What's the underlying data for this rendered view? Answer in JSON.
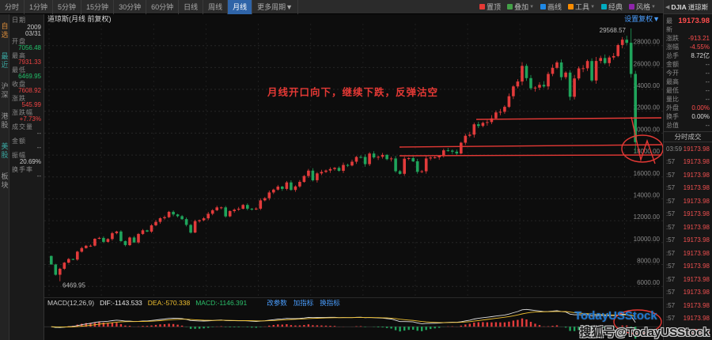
{
  "toolbar": {
    "tabs": [
      "分时",
      "1分钟",
      "5分钟",
      "15分钟",
      "30分钟",
      "60分钟",
      "日线",
      "周线",
      "月线",
      "更多周期"
    ],
    "selected": "月线",
    "more_suffix": "▼",
    "right_buttons": [
      {
        "label": "置顶",
        "color": "#e53935",
        "arrow": false
      },
      {
        "label": "叠加",
        "color": "#43a047",
        "arrow": true
      },
      {
        "label": "画线",
        "color": "#1e88e5",
        "arrow": false
      },
      {
        "label": "工具",
        "color": "#fb8c00",
        "arrow": true
      },
      {
        "label": "经典",
        "color": "#00acc1",
        "arrow": false
      },
      {
        "label": "风格",
        "color": "#8e24aa",
        "arrow": true
      }
    ]
  },
  "left_strip": {
    "items": [
      {
        "label": "自选",
        "color": "#d98b3a"
      },
      {
        "label": "最近",
        "color": "#3aa6a0"
      },
      {
        "label": "沪深",
        "color": "#9a9a9a"
      },
      {
        "label": "港股",
        "color": "#9a9a9a"
      },
      {
        "label": "美股",
        "color": "#3aa6a0"
      },
      {
        "label": "板块",
        "color": "#9a9a9a"
      }
    ]
  },
  "info_panel": {
    "rows": [
      {
        "label": "日期",
        "values": [
          "2009",
          "03/31"
        ],
        "color": "#cccccc"
      },
      {
        "label": "开盘",
        "values": [
          "7056.48"
        ],
        "color": "#21c06a"
      },
      {
        "label": "最高",
        "values": [
          "7931.33"
        ],
        "color": "#ef4444"
      },
      {
        "label": "最低",
        "values": [
          "6469.95"
        ],
        "color": "#21c06a"
      },
      {
        "label": "收盘",
        "values": [
          "7608.92"
        ],
        "color": "#ef4444"
      },
      {
        "label": "涨跌",
        "values": [
          "545.99"
        ],
        "color": "#ef4444"
      },
      {
        "label": "涨跌幅",
        "values": [
          "+7.73%"
        ],
        "color": "#ef4444"
      },
      {
        "label": "成交量",
        "values": [
          "--"
        ],
        "color": "#999999"
      },
      {
        "label": "金额",
        "values": [
          "--"
        ],
        "color": "#999999"
      },
      {
        "label": "振幅",
        "values": [
          "20.69%"
        ],
        "color": "#cccccc"
      },
      {
        "label": "换手率",
        "values": [
          "--"
        ],
        "color": "#999999"
      }
    ]
  },
  "chart_header": {
    "title": "道琼斯(月线 前复权)",
    "settings": "设置复权▼"
  },
  "chart_data": {
    "type": "candlestick",
    "symbol": "DJIA",
    "name": "道琼斯",
    "period": "月线",
    "adjust": "前复权",
    "interval": "month",
    "x_start": "2009-01",
    "x_end": "2020-03",
    "first_open": 8776.39,
    "monthly_closes": [
      8001,
      7063,
      7609,
      8168,
      8500,
      8447,
      9172,
      9496,
      9712,
      9713,
      10345,
      10428,
      10067,
      10325,
      10857,
      11009,
      10137,
      9774,
      10466,
      10015,
      10788,
      11118,
      11006,
      11578,
      11892,
      12226,
      12320,
      12811,
      12570,
      12414,
      12143,
      11614,
      10913,
      11955,
      12046,
      12218,
      12633,
      12952,
      13212,
      13214,
      12393,
      12880,
      13009,
      13091,
      13437,
      13096,
      13026,
      13104,
      13861,
      14054,
      14579,
      14840,
      15116,
      14910,
      15500,
      14810,
      15130,
      15546,
      16086,
      16577,
      15699,
      16322,
      16458,
      16581,
      16717,
      16827,
      16563,
      17098,
      17043,
      17391,
      17828,
      17823,
      17165,
      18133,
      17776,
      17841,
      18011,
      17620,
      17690,
      16528,
      16285,
      17664,
      17720,
      17425,
      16466,
      16517,
      17685,
      17774,
      17787,
      17930,
      18432,
      18401,
      18308,
      18142,
      19124,
      19763,
      19864,
      20812,
      20663,
      20941,
      21009,
      21350,
      21891,
      21948,
      22405,
      23377,
      24272,
      24719,
      26149,
      25029,
      24103,
      24163,
      24416,
      24271,
      25415,
      25965,
      26458,
      25116,
      25538,
      23327,
      25000,
      25916,
      25929,
      26593,
      24815,
      26600,
      26864,
      26403,
      26917,
      27046,
      28051,
      28538,
      28256,
      25409,
      19173.98
    ],
    "marked_high": 29568.57,
    "marked_low": 6469.95,
    "last_close": 19173.98,
    "last_low": 18213.65,
    "ylim": [
      5000,
      30000
    ],
    "y_ticks": [
      28000,
      26000,
      24000,
      22000,
      20000,
      18000,
      16000,
      14000,
      12000,
      10000,
      8000,
      6000
    ],
    "grid": true,
    "colors": {
      "up": "#e23b3b",
      "down": "#1fa45b"
    },
    "indicator": {
      "type": "MACD",
      "fast": 12,
      "slow": 26,
      "signal": 9,
      "dif": -1143.533,
      "dea": -570.338,
      "macd": -1146.391
    }
  },
  "macd_header": {
    "formula": "MACD(12,26,9)",
    "dif_label": "DIF:-1143.533",
    "dea_label": "DEA:-570.338",
    "macd_label": "MACD:-1146.391",
    "links": [
      "改参数",
      "加指标",
      "换指标"
    ]
  },
  "annotations": {
    "note": "月线开口向下，继续下跌，反弹沽空",
    "peak_label": "29568.57",
    "low_label": "6469.95",
    "watermark1": "TodayUSStock",
    "watermark2": "搜狐号@TodayUSStock",
    "draw_color": "#e53935"
  },
  "quote": {
    "back_icon": "◀",
    "code": "DJIA",
    "name": "道琼斯",
    "rows": [
      {
        "label": "最新",
        "value": "19173.98",
        "color": "#ff4d4d",
        "big": true
      },
      {
        "label": "涨跌",
        "value": "-913.21",
        "color": "#ff4d4d",
        "big": false
      },
      {
        "label": "涨幅",
        "value": "-4.55%",
        "color": "#ff4d4d",
        "big": false
      },
      {
        "label": "总手",
        "value": "8.72亿",
        "color": "#dddddd",
        "big": false
      },
      {
        "label": "金额",
        "value": "--",
        "color": "#999999",
        "big": false
      },
      {
        "label": "今开",
        "value": "--",
        "color": "#999999",
        "big": false
      },
      {
        "label": "最高",
        "value": "--",
        "color": "#999999",
        "big": false
      },
      {
        "label": "最低",
        "value": "--",
        "color": "#999999",
        "big": false
      },
      {
        "label": "量比",
        "value": "--",
        "color": "#999999",
        "big": false
      },
      {
        "label": "外盘",
        "value": "0.00%",
        "color": "#ff4d4d",
        "big": false
      },
      {
        "label": "换手",
        "value": "0.00%",
        "color": "#dddddd",
        "big": false
      },
      {
        "label": "总值",
        "value": "--",
        "color": "#999999",
        "big": false
      }
    ],
    "tape_title": "分时成交",
    "tape": [
      {
        "time": "03:59",
        "price": "19173.98"
      },
      {
        "time": ":57",
        "price": "19173.98"
      },
      {
        "time": ":57",
        "price": "19173.98"
      },
      {
        "time": ":57",
        "price": "19173.98"
      },
      {
        "time": ":57",
        "price": "19173.98"
      },
      {
        "time": ":57",
        "price": "19173.98"
      },
      {
        "time": ":57",
        "price": "19173.98"
      },
      {
        "time": ":57",
        "price": "19173.98"
      },
      {
        "time": ":57",
        "price": "19173.98"
      },
      {
        "time": ":57",
        "price": "19173.98"
      },
      {
        "time": ":57",
        "price": "19173.98"
      },
      {
        "time": ":57",
        "price": "19173.98"
      },
      {
        "time": ":57",
        "price": "19173.98"
      },
      {
        "time": ":57",
        "price": "19173.98"
      },
      {
        "time": ":57",
        "price": "19173.98"
      }
    ]
  }
}
